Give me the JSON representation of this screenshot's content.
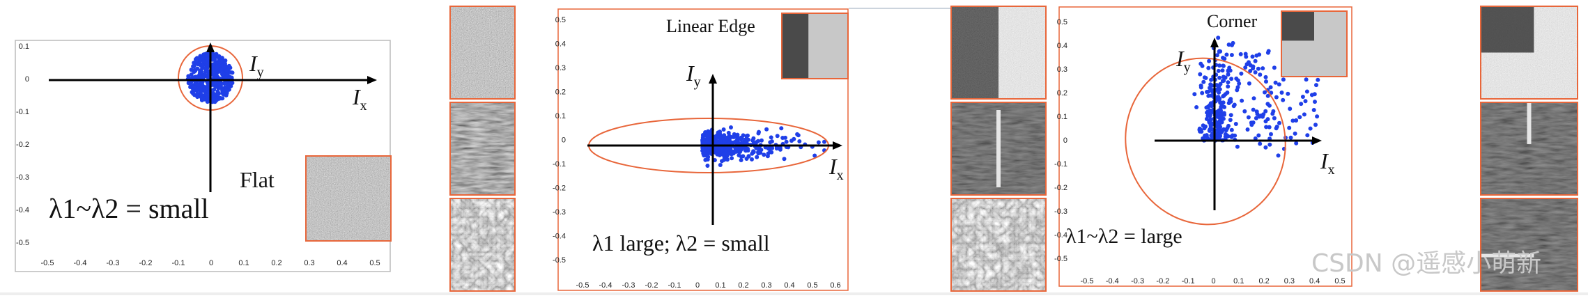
{
  "panels": [
    {
      "title": "Flat",
      "formula": "λ1~λ2 = small",
      "x_label": "I",
      "x_label_sub": "x",
      "y_label": "I",
      "y_label_sub": "y",
      "xticks": [
        "-0.5",
        "-0.4",
        "-0.3",
        "-0.2",
        "-0.1",
        "0",
        "0.1",
        "0.2",
        "0.3",
        "0.4",
        "0.5"
      ],
      "yticks": [
        "0.1",
        "0",
        "-0.1",
        "-0.2",
        "-0.3",
        "-0.4",
        "-0.5"
      ]
    },
    {
      "title": "Linear Edge",
      "formula": "λ1 large; λ2 = small",
      "x_label": "I",
      "x_label_sub": "x",
      "y_label": "I",
      "y_label_sub": "y",
      "xticks": [
        "-0.5",
        "-0.4",
        "-0.3",
        "-0.2",
        "-0.1",
        "0",
        "0.1",
        "0.2",
        "0.3",
        "0.4",
        "0.5",
        "0.6"
      ],
      "yticks": [
        "0.5",
        "0.4",
        "0.3",
        "0.2",
        "0.1",
        "0",
        "-0.1",
        "-0.2",
        "-0.3",
        "-0.4",
        "-0.5"
      ]
    },
    {
      "title": "Corner",
      "formula": "λ1~λ2 = large",
      "x_label": "I",
      "x_label_sub": "x",
      "y_label": "I",
      "y_label_sub": "y",
      "xticks": [
        "-0.5",
        "-0.4",
        "-0.3",
        "-0.2",
        "-0.1",
        "0",
        "0.1",
        "0.2",
        "0.3",
        "0.4",
        "0.5"
      ],
      "yticks": [
        "0.5",
        "0.4",
        "0.3",
        "0.2",
        "0.1",
        "0",
        "-0.1",
        "-0.2",
        "-0.3",
        "-0.4",
        "-0.5"
      ]
    }
  ],
  "watermark": "CSDN @遥感小萌新"
}
